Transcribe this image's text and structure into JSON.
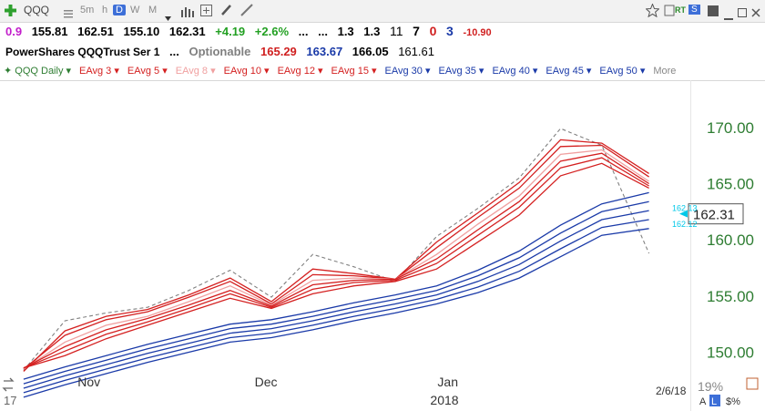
{
  "toolbar": {
    "symbol": "QQQ",
    "timeframes": [
      "5m",
      "h",
      "D",
      "W",
      "M"
    ],
    "active_timeframe": "D",
    "right_badges": [
      "RT",
      "S"
    ]
  },
  "quote": {
    "change_prefix": "0.9",
    "open": "155.81",
    "high": "162.51",
    "low": "155.10",
    "close": "162.31",
    "change": "+4.19",
    "change_pct": "+2.6%",
    "dots1": "...",
    "dots2": "...",
    "v1": "1.3",
    "v2": "1.3",
    "n1": "11",
    "n2": "7",
    "n3": "0",
    "n4": "3",
    "neg": "-10.90"
  },
  "info": {
    "name": "PowerShares QQQTrust Ser 1",
    "dots": "...",
    "optionable": "Optionable",
    "p1": "165.29",
    "p2": "163.67",
    "p3": "166.05",
    "p4": "161.61"
  },
  "legend": {
    "items": [
      {
        "label": "QQQ Daily",
        "color": "#2e7d32"
      },
      {
        "label": "EAvg 3",
        "color": "#d42020"
      },
      {
        "label": "EAvg 5",
        "color": "#d42020"
      },
      {
        "label": "EAvg 8",
        "color": "#f0a0a0"
      },
      {
        "label": "EAvg 10",
        "color": "#d42020"
      },
      {
        "label": "EAvg 12",
        "color": "#d42020"
      },
      {
        "label": "EAvg 15",
        "color": "#d42020"
      },
      {
        "label": "EAvg 30",
        "color": "#1a3aa8"
      },
      {
        "label": "EAvg 35",
        "color": "#1a3aa8"
      },
      {
        "label": "EAvg 40",
        "color": "#1a3aa8"
      },
      {
        "label": "EAvg 45",
        "color": "#1a3aa8"
      },
      {
        "label": "EAvg 50",
        "color": "#1a3aa8"
      }
    ],
    "more": "More"
  },
  "colors": {
    "price_axis": "#2e7d32",
    "short_ema": "#d42020",
    "short_ema_light": "#f0a0a0",
    "long_ema": "#1a3aa8",
    "price_line": "#808080",
    "marker": "#00c8e8"
  },
  "chart_data": {
    "type": "line",
    "title": "QQQ Daily",
    "x_ticks": [
      "Nov",
      "Dec",
      "Jan"
    ],
    "x_year": "2018",
    "date_label": "2/6/18",
    "y_ticks": [
      "150.00",
      "155.00",
      "160.00",
      "165.00",
      "170.00"
    ],
    "ylim": [
      146.8,
      174.2
    ],
    "x": [
      "2017-10-23",
      "2017-10-30",
      "2017-11-06",
      "2017-11-13",
      "2017-11-20",
      "2017-11-27",
      "2017-12-04",
      "2017-12-11",
      "2017-12-18",
      "2017-12-25",
      "2018-01-01",
      "2018-01-08",
      "2018-01-15",
      "2018-01-22",
      "2018-01-29",
      "2018-02-06"
    ],
    "series": [
      {
        "name": "QQQ Daily",
        "values": [
          148.4,
          152.8,
          153.5,
          154.0,
          155.5,
          157.3,
          154.9,
          158.7,
          157.6,
          156.3,
          160.3,
          162.8,
          165.5,
          169.9,
          168.4,
          158.8
        ]
      },
      {
        "name": "EAvg 3",
        "values": [
          148.3,
          151.9,
          153.2,
          153.8,
          155.1,
          156.6,
          154.5,
          157.4,
          157.0,
          156.5,
          159.8,
          162.4,
          165.1,
          168.9,
          168.6,
          165.9
        ]
      },
      {
        "name": "EAvg 5",
        "values": [
          148.5,
          151.5,
          152.9,
          153.6,
          154.9,
          156.3,
          154.3,
          156.9,
          156.8,
          156.5,
          159.3,
          162.0,
          164.6,
          168.3,
          168.4,
          165.6
        ]
      },
      {
        "name": "EAvg 8",
        "values": [
          148.5,
          150.9,
          152.4,
          153.2,
          154.5,
          155.9,
          154.2,
          156.4,
          156.6,
          156.5,
          158.7,
          161.4,
          163.9,
          167.6,
          168.0,
          165.2
        ]
      },
      {
        "name": "EAvg 10",
        "values": [
          148.6,
          150.5,
          152.0,
          153.0,
          154.2,
          155.5,
          154.1,
          156.0,
          156.4,
          156.5,
          158.3,
          160.9,
          163.4,
          167.0,
          167.7,
          165.0
        ]
      },
      {
        "name": "EAvg 12",
        "values": [
          148.6,
          150.1,
          151.6,
          152.7,
          153.9,
          155.2,
          154.0,
          155.6,
          156.2,
          156.4,
          157.9,
          160.4,
          162.9,
          166.4,
          167.3,
          164.8
        ]
      },
      {
        "name": "EAvg 15",
        "values": [
          148.6,
          149.7,
          151.2,
          152.4,
          153.6,
          154.8,
          153.9,
          155.2,
          155.9,
          156.3,
          157.4,
          159.8,
          162.2,
          165.7,
          166.8,
          164.6
        ]
      },
      {
        "name": "EAvg 30",
        "values": [
          147.6,
          148.7,
          149.7,
          150.7,
          151.6,
          152.5,
          152.9,
          153.6,
          154.4,
          155.1,
          155.9,
          157.3,
          159.0,
          161.3,
          163.2,
          164.2
        ]
      },
      {
        "name": "EAvg 35",
        "values": [
          147.2,
          148.3,
          149.3,
          150.3,
          151.2,
          152.1,
          152.5,
          153.2,
          154.0,
          154.7,
          155.5,
          156.8,
          158.4,
          160.6,
          162.5,
          163.4
        ]
      },
      {
        "name": "EAvg 40",
        "values": [
          146.8,
          147.9,
          148.9,
          149.9,
          150.8,
          151.7,
          152.1,
          152.8,
          153.6,
          154.3,
          155.1,
          156.3,
          157.8,
          159.9,
          161.8,
          162.6
        ]
      },
      {
        "name": "EAvg 45",
        "values": [
          146.4,
          147.5,
          148.5,
          149.5,
          150.4,
          151.3,
          151.7,
          152.4,
          153.2,
          153.9,
          154.7,
          155.8,
          157.2,
          159.2,
          161.1,
          161.8
        ]
      },
      {
        "name": "EAvg 50",
        "values": [
          146.0,
          147.1,
          148.1,
          149.1,
          150.0,
          150.9,
          151.3,
          152.0,
          152.8,
          153.5,
          154.3,
          155.3,
          156.6,
          158.5,
          160.4,
          161.0
        ]
      }
    ],
    "current_price": "162.31",
    "markers": [
      {
        "label": "162.13",
        "value": 162.8
      },
      {
        "label": "162.12",
        "value": 161.4
      }
    ],
    "zoom": "19%",
    "bottom_left": "17",
    "scale_buttons": [
      "A",
      "L",
      "$%"
    ]
  }
}
